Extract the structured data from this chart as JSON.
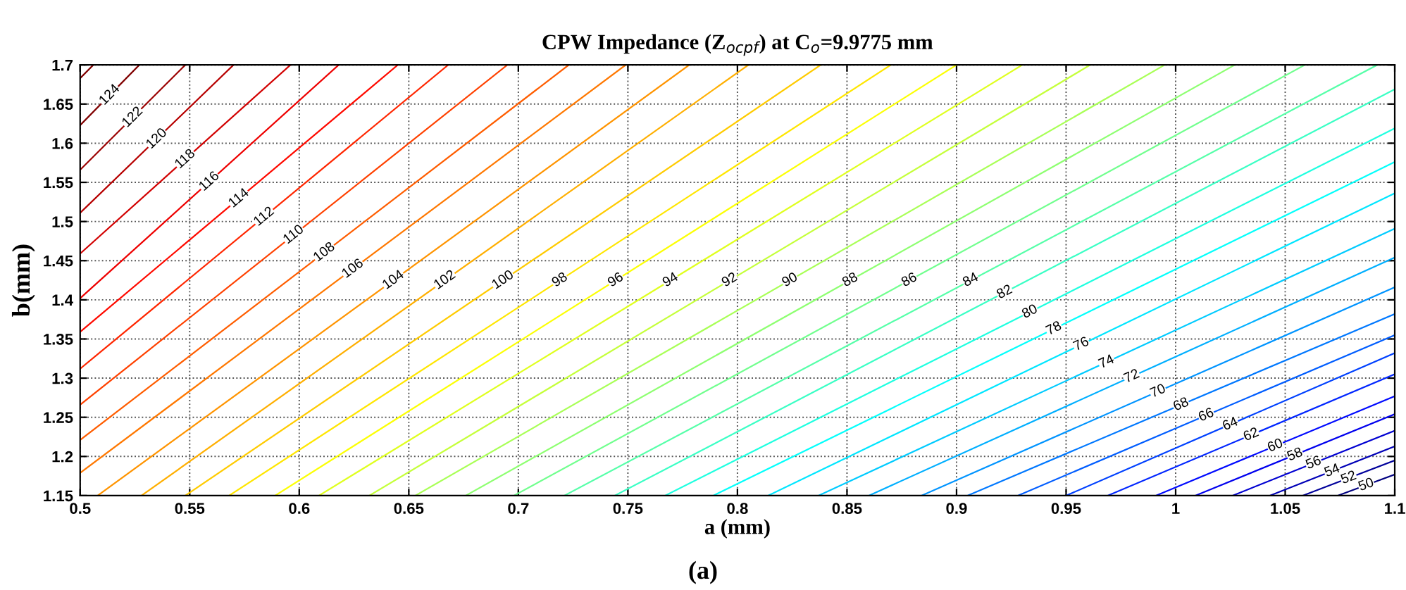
{
  "chart_data": {
    "type": "line",
    "title": "CPW Impedance (Z$_{ocpf}$) at C$_{o}$=9.9775 mm",
    "xlabel": "a (mm)",
    "ylabel": "b(mm)",
    "annotations": [
      "(a)"
    ],
    "xlim": [
      0.5,
      1.1
    ],
    "ylim": [
      1.15,
      1.7
    ],
    "xticks": [
      0.5,
      0.55,
      0.6,
      0.65,
      0.7,
      0.75,
      0.8,
      0.85,
      0.9,
      0.95,
      1,
      1.05,
      1.1
    ],
    "yticks": [
      1.15,
      1.2,
      1.25,
      1.3,
      1.35,
      1.4,
      1.45,
      1.5,
      1.55,
      1.6,
      1.65,
      1.7
    ],
    "grid": true,
    "legend": false,
    "line_style": "solid",
    "marker": "none",
    "series": [
      {
        "color": "#800000",
        "x": [
          0.5,
          0.506
        ],
        "values": [
          1.683,
          1.7
        ]
      },
      {
        "name": "124",
        "color": "#800000",
        "x": [
          0.5,
          0.527
        ],
        "values": [
          1.623,
          1.7
        ]
      },
      {
        "name": "122",
        "color": "#9b0000",
        "x": [
          0.5,
          0.548
        ],
        "values": [
          1.566,
          1.7
        ]
      },
      {
        "name": "120",
        "color": "#b70000",
        "x": [
          0.5,
          0.57
        ],
        "values": [
          1.511,
          1.7
        ]
      },
      {
        "name": "118",
        "color": "#d20000",
        "x": [
          0.5,
          0.596
        ],
        "values": [
          1.459,
          1.7
        ]
      },
      {
        "name": "116",
        "color": "#ee0000",
        "x": [
          0.5,
          0.618
        ],
        "values": [
          1.402,
          1.7
        ]
      },
      {
        "name": "114",
        "color": "#ff0a00",
        "x": [
          0.5,
          0.645
        ],
        "values": [
          1.359,
          1.7
        ]
      },
      {
        "name": "112",
        "color": "#ff2600",
        "x": [
          0.5,
          0.668
        ],
        "values": [
          1.312,
          1.7
        ]
      },
      {
        "name": "110",
        "color": "#ff4100",
        "x": [
          0.5,
          0.695
        ],
        "values": [
          1.266,
          1.7
        ]
      },
      {
        "name": "108",
        "color": "#ff5d00",
        "x": [
          0.5,
          0.723
        ],
        "values": [
          1.221,
          1.7
        ]
      },
      {
        "name": "106",
        "color": "#ff7800",
        "x": [
          0.5,
          0.749
        ],
        "values": [
          1.179,
          1.7
        ]
      },
      {
        "name": "104",
        "color": "#ff9400",
        "x": [
          0.508,
          0.778
        ],
        "values": [
          1.15,
          1.7
        ]
      },
      {
        "name": "102",
        "color": "#ffaf00",
        "x": [
          0.528,
          0.805
        ],
        "values": [
          1.15,
          1.7
        ]
      },
      {
        "name": "100",
        "color": "#ffcb00",
        "x": [
          0.548,
          0.838
        ],
        "values": [
          1.15,
          1.7
        ]
      },
      {
        "name": "98",
        "color": "#ffe600",
        "x": [
          0.568,
          0.87
        ],
        "values": [
          1.15,
          1.7
        ]
      },
      {
        "name": "96",
        "color": "#fcff03",
        "x": [
          0.589,
          0.9
        ],
        "values": [
          1.15,
          1.7
        ]
      },
      {
        "name": "94",
        "color": "#e0ff1f",
        "x": [
          0.609,
          0.93
        ],
        "values": [
          1.15,
          1.7
        ]
      },
      {
        "name": "92",
        "color": "#c5ff3a",
        "x": [
          0.632,
          0.961
        ],
        "values": [
          1.15,
          1.7
        ]
      },
      {
        "name": "90",
        "color": "#a9ff56",
        "x": [
          0.653,
          0.995
        ],
        "values": [
          1.15,
          1.7
        ]
      },
      {
        "name": "88",
        "color": "#8eff71",
        "x": [
          0.676,
          1.027
        ],
        "values": [
          1.15,
          1.7
        ]
      },
      {
        "name": "86",
        "color": "#71ff8e",
        "x": [
          0.698,
          1.059
        ],
        "values": [
          1.15,
          1.7
        ]
      },
      {
        "name": "84",
        "color": "#56ffa9",
        "x": [
          0.721,
          1.092
        ],
        "values": [
          1.15,
          1.7
        ]
      },
      {
        "name": "82",
        "color": "#3affc5",
        "x": [
          0.744,
          1.1
        ],
        "values": [
          1.15,
          1.669
        ]
      },
      {
        "name": "80",
        "color": "#1fffe0",
        "x": [
          0.767,
          1.1
        ],
        "values": [
          1.15,
          1.619
        ]
      },
      {
        "name": "78",
        "color": "#03fffc",
        "x": [
          0.789,
          1.1
        ],
        "values": [
          1.15,
          1.576
        ]
      },
      {
        "name": "76",
        "color": "#00e6ff",
        "x": [
          0.814,
          1.1
        ],
        "values": [
          1.15,
          1.536
        ]
      },
      {
        "name": "74",
        "color": "#00cbff",
        "x": [
          0.837,
          1.1
        ],
        "values": [
          1.15,
          1.491
        ]
      },
      {
        "name": "72",
        "color": "#00afff",
        "x": [
          0.86,
          1.1
        ],
        "values": [
          1.15,
          1.454
        ]
      },
      {
        "name": "70",
        "color": "#0094ff",
        "x": [
          0.884,
          1.1
        ],
        "values": [
          1.15,
          1.416
        ]
      },
      {
        "name": "68",
        "color": "#0078ff",
        "x": [
          0.905,
          1.1
        ],
        "values": [
          1.15,
          1.382
        ]
      },
      {
        "name": "66",
        "color": "#005dff",
        "x": [
          0.928,
          1.1
        ],
        "values": [
          1.15,
          1.355
        ]
      },
      {
        "name": "64",
        "color": "#0041ff",
        "x": [
          0.95,
          1.1
        ],
        "values": [
          1.15,
          1.332
        ]
      },
      {
        "name": "62",
        "color": "#0026ff",
        "x": [
          0.969,
          1.1
        ],
        "values": [
          1.15,
          1.305
        ]
      },
      {
        "name": "60",
        "color": "#000aff",
        "x": [
          0.991,
          1.1
        ],
        "values": [
          1.15,
          1.277
        ]
      },
      {
        "name": "58",
        "color": "#0000ee",
        "x": [
          1.009,
          1.1
        ],
        "values": [
          1.15,
          1.254
        ]
      },
      {
        "name": "56",
        "color": "#0000d2",
        "x": [
          1.026,
          1.1
        ],
        "values": [
          1.15,
          1.233
        ]
      },
      {
        "name": "54",
        "color": "#0000b7",
        "x": [
          1.043,
          1.1
        ],
        "values": [
          1.15,
          1.213
        ]
      },
      {
        "name": "52",
        "color": "#00009b",
        "x": [
          1.058,
          1.1
        ],
        "values": [
          1.15,
          1.195
        ]
      },
      {
        "name": "50",
        "color": "#000080",
        "x": [
          1.074,
          1.1
        ],
        "values": [
          1.15,
          1.177
        ]
      }
    ]
  }
}
